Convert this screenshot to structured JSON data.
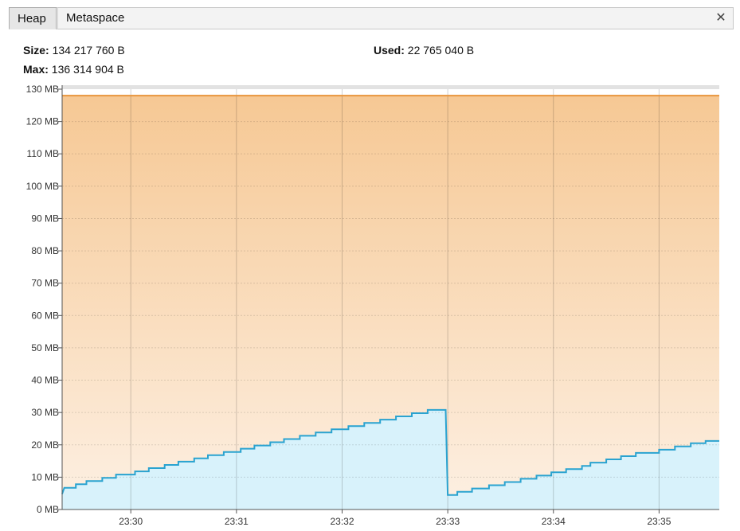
{
  "tabs": [
    {
      "label": "Heap",
      "active": true
    },
    {
      "label": "Metaspace",
      "active": false
    }
  ],
  "close_icon": "close-icon",
  "stats": {
    "size_label": "Size:",
    "size_value": "134 217 760 B",
    "max_label": "Max:",
    "max_value": "136 314 904 B",
    "used_label": "Used:",
    "used_value": "22 765 040 B"
  },
  "colors": {
    "size_line": "#e8953c",
    "used_line": "#2aa3d0",
    "used_fill": "#d8f2fb",
    "area_top": "#f6c894",
    "area_bottom": "#fdf0e3"
  },
  "chart_data": {
    "type": "area",
    "ylim": [
      0,
      130
    ],
    "yticks": [
      0,
      10,
      20,
      30,
      40,
      50,
      60,
      70,
      80,
      90,
      100,
      110,
      120,
      130
    ],
    "ytick_labels": [
      "0 MB",
      "10 MB",
      "20 MB",
      "30 MB",
      "40 MB",
      "50 MB",
      "60 MB",
      "70 MB",
      "80 MB",
      "90 MB",
      "100 MB",
      "110 MB",
      "120 MB",
      "130 MB"
    ],
    "xlim_minutes": [
      29.35,
      35.57
    ],
    "xticks_minutes": [
      30,
      31,
      32,
      33,
      34,
      35
    ],
    "xtick_labels": [
      "23:30",
      "23:31",
      "23:32",
      "23:33",
      "23:34",
      "23:35"
    ],
    "grid": true,
    "series": [
      {
        "key": "size",
        "points": [
          [
            29.35,
            128
          ],
          [
            35.57,
            128
          ]
        ]
      },
      {
        "key": "used",
        "points": [
          [
            29.35,
            4.8
          ],
          [
            29.37,
            6.7
          ],
          [
            29.48,
            6.7
          ],
          [
            29.48,
            7.8
          ],
          [
            29.58,
            7.8
          ],
          [
            29.58,
            8.8
          ],
          [
            29.73,
            8.8
          ],
          [
            29.73,
            9.8
          ],
          [
            29.86,
            9.8
          ],
          [
            29.86,
            10.8
          ],
          [
            30.04,
            10.8
          ],
          [
            30.04,
            11.8
          ],
          [
            30.17,
            11.8
          ],
          [
            30.17,
            12.8
          ],
          [
            30.32,
            12.8
          ],
          [
            30.32,
            13.8
          ],
          [
            30.45,
            13.8
          ],
          [
            30.45,
            14.8
          ],
          [
            30.6,
            14.8
          ],
          [
            30.6,
            15.8
          ],
          [
            30.73,
            15.8
          ],
          [
            30.73,
            16.8
          ],
          [
            30.88,
            16.8
          ],
          [
            30.88,
            17.8
          ],
          [
            31.04,
            17.8
          ],
          [
            31.04,
            18.8
          ],
          [
            31.17,
            18.8
          ],
          [
            31.17,
            19.8
          ],
          [
            31.32,
            19.8
          ],
          [
            31.32,
            20.8
          ],
          [
            31.45,
            20.8
          ],
          [
            31.45,
            21.8
          ],
          [
            31.6,
            21.8
          ],
          [
            31.6,
            22.8
          ],
          [
            31.75,
            22.8
          ],
          [
            31.75,
            23.8
          ],
          [
            31.9,
            23.8
          ],
          [
            31.9,
            24.8
          ],
          [
            32.06,
            24.8
          ],
          [
            32.06,
            25.8
          ],
          [
            32.21,
            25.8
          ],
          [
            32.21,
            26.8
          ],
          [
            32.36,
            26.8
          ],
          [
            32.36,
            27.8
          ],
          [
            32.51,
            27.8
          ],
          [
            32.51,
            28.8
          ],
          [
            32.66,
            28.8
          ],
          [
            32.66,
            29.8
          ],
          [
            32.81,
            29.8
          ],
          [
            32.81,
            30.8
          ],
          [
            32.98,
            30.8
          ],
          [
            33.0,
            4.5
          ],
          [
            33.09,
            4.5
          ],
          [
            33.09,
            5.5
          ],
          [
            33.23,
            5.5
          ],
          [
            33.23,
            6.5
          ],
          [
            33.39,
            6.5
          ],
          [
            33.39,
            7.5
          ],
          [
            33.54,
            7.5
          ],
          [
            33.54,
            8.5
          ],
          [
            33.69,
            8.5
          ],
          [
            33.69,
            9.5
          ],
          [
            33.84,
            9.5
          ],
          [
            33.84,
            10.5
          ],
          [
            33.98,
            10.5
          ],
          [
            33.98,
            11.5
          ],
          [
            34.12,
            11.5
          ],
          [
            34.12,
            12.5
          ],
          [
            34.27,
            12.5
          ],
          [
            34.27,
            13.5
          ],
          [
            34.35,
            13.5
          ],
          [
            34.35,
            14.5
          ],
          [
            34.5,
            14.5
          ],
          [
            34.5,
            15.5
          ],
          [
            34.64,
            15.5
          ],
          [
            34.64,
            16.5
          ],
          [
            34.78,
            16.5
          ],
          [
            34.78,
            17.5
          ],
          [
            35.0,
            17.5
          ],
          [
            35.0,
            18.5
          ],
          [
            35.15,
            18.5
          ],
          [
            35.15,
            19.5
          ],
          [
            35.3,
            19.5
          ],
          [
            35.3,
            20.5
          ],
          [
            35.44,
            20.5
          ],
          [
            35.44,
            21.2
          ],
          [
            35.57,
            21.2
          ]
        ]
      }
    ]
  }
}
